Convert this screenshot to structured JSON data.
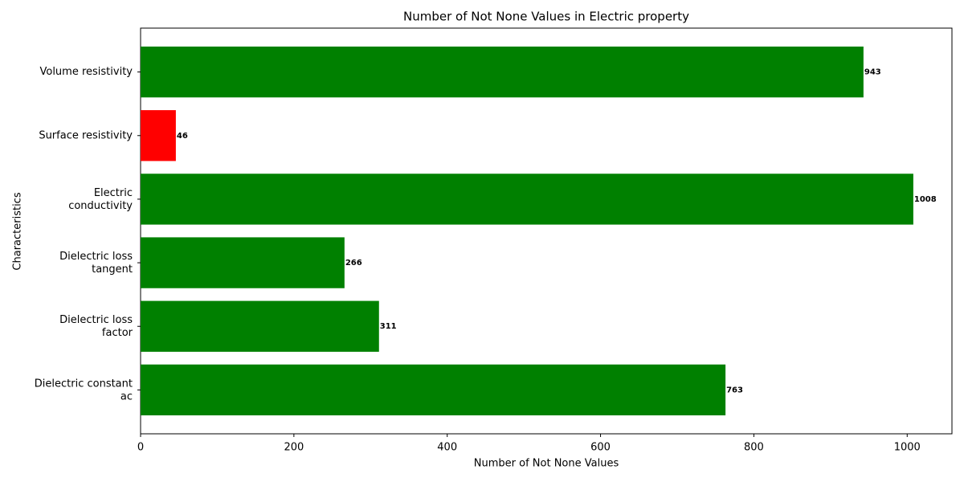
{
  "chart_data": {
    "type": "barh",
    "title": "Number of Not None Values in Electric property",
    "x_label": "Number of Not None Values",
    "y_label": "Characteristics",
    "categories": [
      "Dielectric constant\nac",
      "Dielectric loss\nfactor",
      "Dielectric loss\ntangent",
      "Electric\nconductivity",
      "Surface resistivity",
      "Volume resistivity"
    ],
    "values": [
      763,
      311,
      266,
      1008,
      46,
      943
    ],
    "colors": [
      "#008000",
      "#008000",
      "#008000",
      "#008000",
      "#ff0000",
      "#008000"
    ],
    "xlim": [
      0,
      1058.4
    ],
    "xticks": [
      0,
      200,
      400,
      600,
      800,
      1000
    ]
  }
}
